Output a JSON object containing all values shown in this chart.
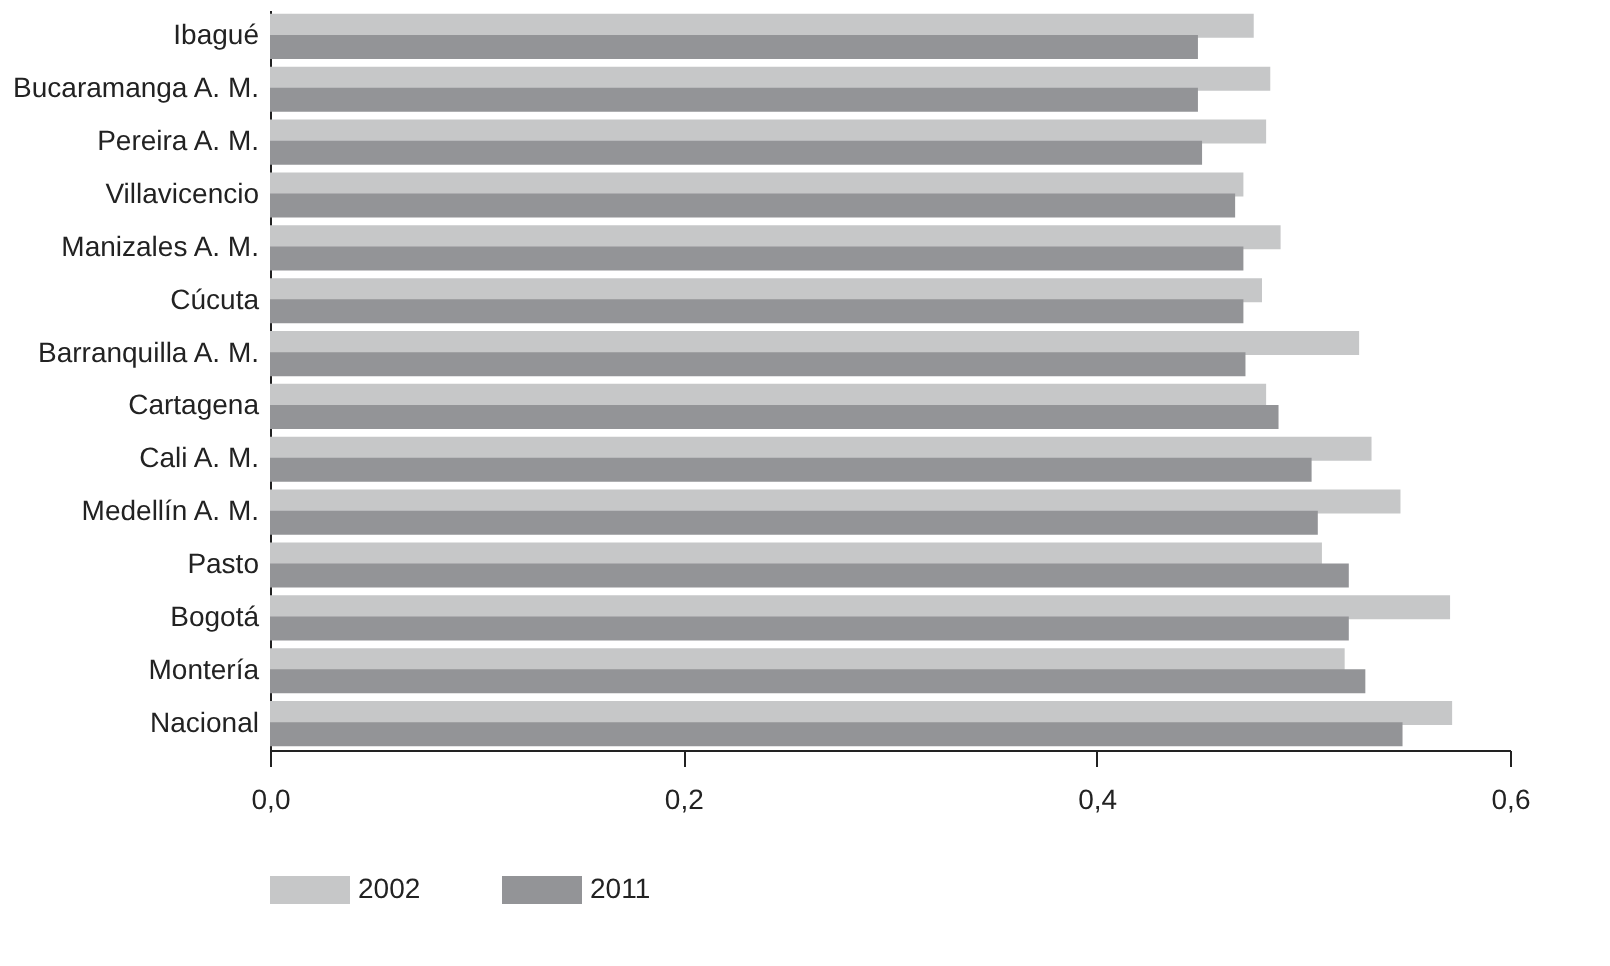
{
  "chart_data": {
    "type": "bar",
    "orientation": "horizontal",
    "categories": [
      "Ibagué",
      "Bucaramanga A. M.",
      "Pereira A. M.",
      "Villavicencio",
      "Manizales A. M.",
      "Cúcuta",
      "Barranquilla A. M.",
      "Cartagena",
      "Cali A. M.",
      "Medellín A. M.",
      "Pasto",
      "Bogotá",
      "Montería",
      "Nacional"
    ],
    "series": [
      {
        "name": "2002",
        "color": "#c6c7c8",
        "values": [
          0.476,
          0.484,
          0.482,
          0.471,
          0.489,
          0.48,
          0.527,
          0.482,
          0.533,
          0.547,
          0.509,
          0.571,
          0.52,
          0.572
        ]
      },
      {
        "name": "2011",
        "color": "#939497",
        "values": [
          0.449,
          0.449,
          0.451,
          0.467,
          0.471,
          0.471,
          0.472,
          0.488,
          0.504,
          0.507,
          0.522,
          0.522,
          0.53,
          0.548
        ]
      }
    ],
    "xlim": [
      0,
      0.6
    ],
    "xticks": [
      {
        "value": 0,
        "label": "0,0"
      },
      {
        "value": 0.2,
        "label": "0,2"
      },
      {
        "value": 0.4,
        "label": "0,4"
      },
      {
        "value": 0.6,
        "label": "0,6"
      }
    ],
    "grid": false,
    "legend": "bottom"
  }
}
